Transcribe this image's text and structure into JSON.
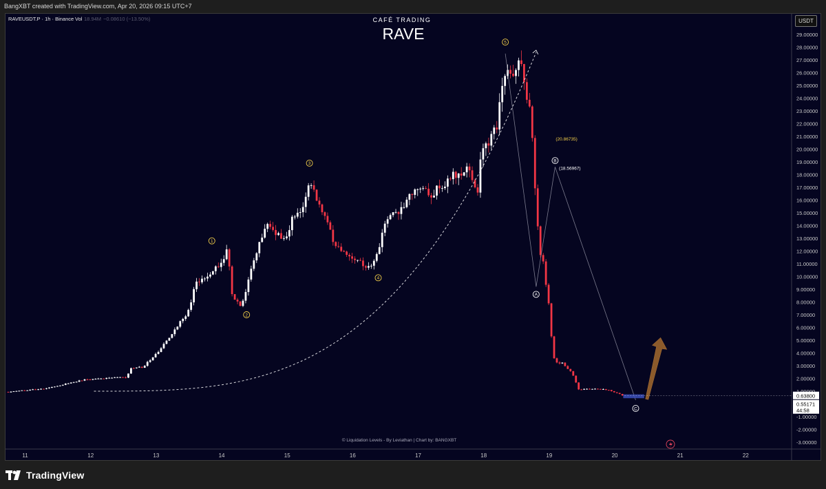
{
  "header": {
    "created_line": "BangXBT created with TradingView.com, Apr 20, 2026 09:15 UTC+7"
  },
  "legend": {
    "symbol": "RAVEUSDT.P · 1h · Binance",
    "vol_label": "Vol",
    "vol_value": "18.94M",
    "change": "−0.08610 (−13.50%)"
  },
  "branding": {
    "cafe": "CAFÉ TRADING",
    "coin": "RAVE",
    "footer_credit": "© Liquidation Levels - By Leviathan  |  Chart by: BANGXBT",
    "logo_text": "TradingView"
  },
  "currency_button": "USDT",
  "colors": {
    "background": "#050520",
    "up_candle": "#ffffff",
    "down_candle": "#f23645",
    "wave_label": "#f5d14a",
    "arrow": "#8b5a2b",
    "box": "#3b4fb8"
  },
  "chart_data": {
    "type": "candlestick",
    "title": "RAVE",
    "timeframe": "1h",
    "x_axis": {
      "ticks": [
        "11",
        "12",
        "13",
        "14",
        "15",
        "16",
        "17",
        "18",
        "19",
        "20",
        "21",
        "22"
      ],
      "start_day": 10.7,
      "end_day": 22.7
    },
    "y_axis": {
      "ylim": [
        -3.3,
        29.5
      ],
      "ticks": [
        "29.00000",
        "28.00000",
        "27.00000",
        "26.00000",
        "25.00000",
        "24.00000",
        "23.00000",
        "22.00000",
        "21.00000",
        "20.00000",
        "19.00000",
        "18.00000",
        "17.00000",
        "16.00000",
        "15.00000",
        "14.00000",
        "13.00000",
        "12.00000",
        "11.00000",
        "10.00000",
        "9.00000",
        "8.00000",
        "7.00000",
        "6.00000",
        "5.00000",
        "4.00000",
        "3.00000",
        "2.00000",
        "1.00000",
        "0.00000",
        "-1.00000",
        "-2.00000",
        "-3.00000"
      ]
    },
    "price_path": [
      [
        10.7,
        0.95
      ],
      [
        11.3,
        1.2
      ],
      [
        11.9,
        1.9
      ],
      [
        12.5,
        2.1
      ],
      [
        12.55,
        2.0
      ],
      [
        12.6,
        2.8
      ],
      [
        12.8,
        2.9
      ],
      [
        13.1,
        4.5
      ],
      [
        13.3,
        6.0
      ],
      [
        13.5,
        7.3
      ],
      [
        13.6,
        9.5
      ],
      [
        13.7,
        9.8
      ],
      [
        13.9,
        10.6
      ],
      [
        14.1,
        12.1
      ],
      [
        14.15,
        8.5
      ],
      [
        14.3,
        7.5
      ],
      [
        14.5,
        11.4
      ],
      [
        14.7,
        14.2
      ],
      [
        14.8,
        13.6
      ],
      [
        14.95,
        12.9
      ],
      [
        15.1,
        14.7
      ],
      [
        15.25,
        15.7
      ],
      [
        15.35,
        17.8
      ],
      [
        15.45,
        16.1
      ],
      [
        15.6,
        14.2
      ],
      [
        15.75,
        12.3
      ],
      [
        15.9,
        11.8
      ],
      [
        16.1,
        11.2
      ],
      [
        16.3,
        10.6
      ],
      [
        16.45,
        13.2
      ],
      [
        16.55,
        14.8
      ],
      [
        16.7,
        15.1
      ],
      [
        16.85,
        16.3
      ],
      [
        17.0,
        16.9
      ],
      [
        17.2,
        16.5
      ],
      [
        17.4,
        17.3
      ],
      [
        17.6,
        18.2
      ],
      [
        17.8,
        18.4
      ],
      [
        17.9,
        16.2
      ],
      [
        17.95,
        19.2
      ],
      [
        18.1,
        21.0
      ],
      [
        18.2,
        21.9
      ],
      [
        18.3,
        25.8
      ],
      [
        18.4,
        25.9
      ],
      [
        18.5,
        26.1
      ],
      [
        18.55,
        26.9
      ],
      [
        18.62,
        24.9
      ],
      [
        18.7,
        23.4
      ],
      [
        18.75,
        20.8
      ],
      [
        18.8,
        15.5
      ],
      [
        18.85,
        12.0
      ],
      [
        18.9,
        11.5
      ],
      [
        18.95,
        9.5
      ],
      [
        19.0,
        7.6
      ],
      [
        19.05,
        4.0
      ],
      [
        19.1,
        3.2
      ],
      [
        19.2,
        3.2
      ],
      [
        19.35,
        2.4
      ],
      [
        19.45,
        1.15
      ],
      [
        19.7,
        1.2
      ],
      [
        19.9,
        1.1
      ],
      [
        20.05,
        0.85
      ],
      [
        20.15,
        0.6
      ]
    ],
    "current_price": "0.63800",
    "price_tag": "0.55171",
    "countdown": "44:58",
    "wave_labels": [
      {
        "label": "1",
        "day": 13.85,
        "price": 12.8
      },
      {
        "label": "2",
        "day": 14.38,
        "price": 7.0
      },
      {
        "label": "3",
        "day": 15.34,
        "price": 18.9
      },
      {
        "label": "4",
        "day": 16.39,
        "price": 9.9
      },
      {
        "label": "5",
        "day": 18.33,
        "price": 28.4
      },
      {
        "label": "A",
        "day": 18.8,
        "price": 8.6
      },
      {
        "label": "B",
        "day": 19.09,
        "price": 19.1
      },
      {
        "label": "C",
        "day": 20.32,
        "price": -0.35
      }
    ],
    "annotations": [
      {
        "text": "(20.86735)",
        "day": 19.1,
        "price": 20.85,
        "color": "#f5d14a"
      },
      {
        "text": "(18.56967)",
        "day": 19.15,
        "price": 18.55,
        "color": "#ffffff"
      }
    ]
  }
}
